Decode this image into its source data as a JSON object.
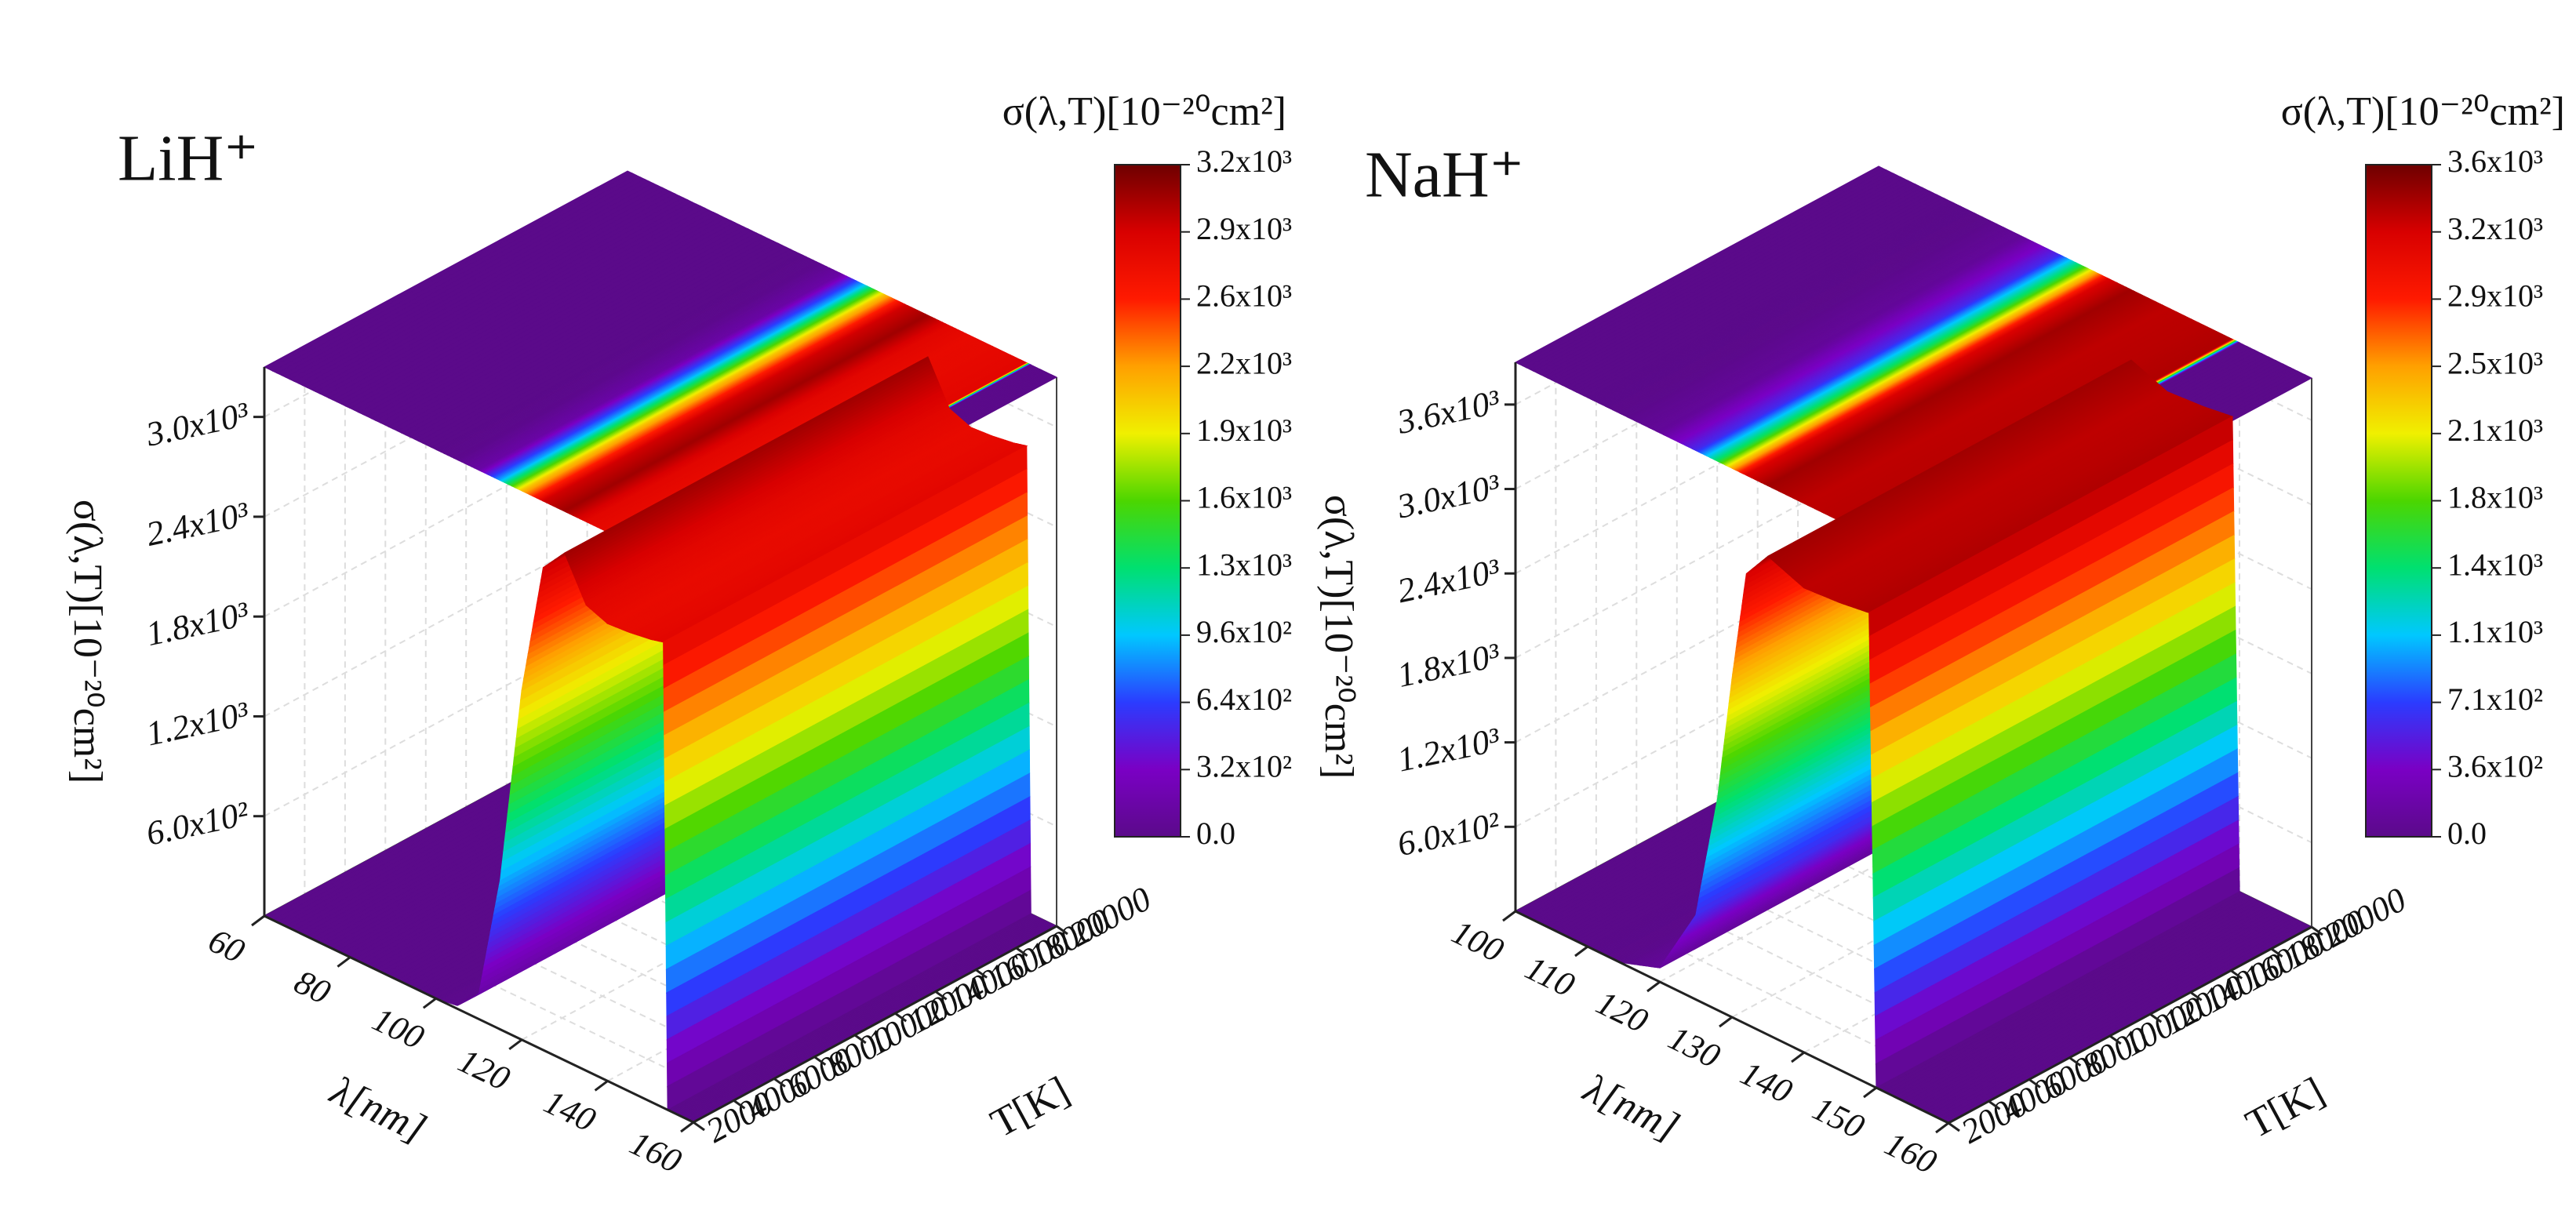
{
  "chart_data": [
    {
      "type": "surface3d",
      "title": "LiH⁺",
      "zlabel": "σ(λ,T)[10⁻²⁰cm²]",
      "colorbar_title": "σ(λ,T)[10⁻²⁰cm²]",
      "xlabel": "λ[nm]",
      "ylabel": "T[K]",
      "x": [
        60,
        80,
        100,
        105,
        110,
        115,
        120,
        125,
        130,
        135,
        140,
        145,
        150,
        153,
        154,
        160
      ],
      "values": [
        0,
        0,
        0,
        20,
        150,
        900,
        2100,
        2900,
        3050,
        2800,
        2750,
        2760,
        2780,
        2800,
        0,
        0
      ],
      "xlim": [
        60,
        160
      ],
      "xticks": [
        60,
        80,
        100,
        120,
        140,
        160
      ],
      "ylim": [
        2000,
        20000
      ],
      "yticks": [
        2000,
        4000,
        6000,
        8000,
        10000,
        12000,
        14000,
        16000,
        18000,
        20000
      ],
      "zlim": [
        0,
        3300
      ],
      "zticks": [
        {
          "value": 600,
          "label": "6.0x10²"
        },
        {
          "value": 1200,
          "label": "1.2x10³"
        },
        {
          "value": 1800,
          "label": "1.8x10³"
        },
        {
          "value": 2400,
          "label": "2.4x10³"
        },
        {
          "value": 3000,
          "label": "3.0x10³"
        }
      ],
      "clim": [
        0,
        3200
      ],
      "cticks": [
        {
          "value": 0,
          "label": "0.0"
        },
        {
          "value": 320,
          "label": "3.2x10²"
        },
        {
          "value": 640,
          "label": "6.4x10²"
        },
        {
          "value": 960,
          "label": "9.6x10²"
        },
        {
          "value": 1280,
          "label": "1.3x10³"
        },
        {
          "value": 1600,
          "label": "1.6x10³"
        },
        {
          "value": 1920,
          "label": "1.9x10³"
        },
        {
          "value": 2240,
          "label": "2.2x10³"
        },
        {
          "value": 2560,
          "label": "2.6x10³"
        },
        {
          "value": 2880,
          "label": "2.9x10³"
        },
        {
          "value": 3200,
          "label": "3.2x10³"
        }
      ],
      "colormap": [
        "#5b0a8a",
        "#7a00c4",
        "#2b3cff",
        "#00c8ff",
        "#00e070",
        "#4cd600",
        "#f0f000",
        "#ffa000",
        "#ff1a00",
        "#d80000",
        "#6e0000"
      ],
      "grid": true
    },
    {
      "type": "surface3d",
      "title": "NaH⁺",
      "zlabel": "σ(λ,T)[10⁻²⁰cm²]",
      "colorbar_title": "σ(λ,T)[10⁻²⁰cm²]",
      "xlabel": "λ[nm]",
      "ylabel": "T[K]",
      "x": [
        100,
        110,
        115,
        120,
        125,
        128,
        130,
        132,
        135,
        140,
        145,
        149,
        150,
        160
      ],
      "values": [
        0,
        0,
        10,
        100,
        600,
        1500,
        2400,
        3200,
        3400,
        3300,
        3320,
        3350,
        0,
        0
      ],
      "xlim": [
        100,
        160
      ],
      "xticks": [
        100,
        110,
        120,
        130,
        140,
        150,
        160
      ],
      "ylim": [
        2000,
        20000
      ],
      "yticks": [
        2000,
        4000,
        6000,
        8000,
        10000,
        12000,
        14000,
        16000,
        18000,
        20000
      ],
      "zlim": [
        0,
        3900
      ],
      "zticks": [
        {
          "value": 600,
          "label": "6.0x10²"
        },
        {
          "value": 1200,
          "label": "1.2x10³"
        },
        {
          "value": 1800,
          "label": "1.8x10³"
        },
        {
          "value": 2400,
          "label": "2.4x10³"
        },
        {
          "value": 3000,
          "label": "3.0x10³"
        },
        {
          "value": 3600,
          "label": "3.6x10³"
        }
      ],
      "clim": [
        0,
        3570
      ],
      "cticks": [
        {
          "value": 0,
          "label": "0.0"
        },
        {
          "value": 357,
          "label": "3.6x10²"
        },
        {
          "value": 714,
          "label": "7.1x10²"
        },
        {
          "value": 1071,
          "label": "1.1x10³"
        },
        {
          "value": 1428,
          "label": "1.4x10³"
        },
        {
          "value": 1785,
          "label": "1.8x10³"
        },
        {
          "value": 2142,
          "label": "2.1x10³"
        },
        {
          "value": 2499,
          "label": "2.5x10³"
        },
        {
          "value": 2856,
          "label": "2.9x10³"
        },
        {
          "value": 3213,
          "label": "3.2x10³"
        },
        {
          "value": 3570,
          "label": "3.6x10³"
        }
      ],
      "colormap": [
        "#5b0a8a",
        "#7a00c4",
        "#2b3cff",
        "#00c8ff",
        "#00e070",
        "#4cd600",
        "#f0f000",
        "#ffa000",
        "#ff1a00",
        "#d80000",
        "#6e0000"
      ],
      "grid": true
    }
  ]
}
